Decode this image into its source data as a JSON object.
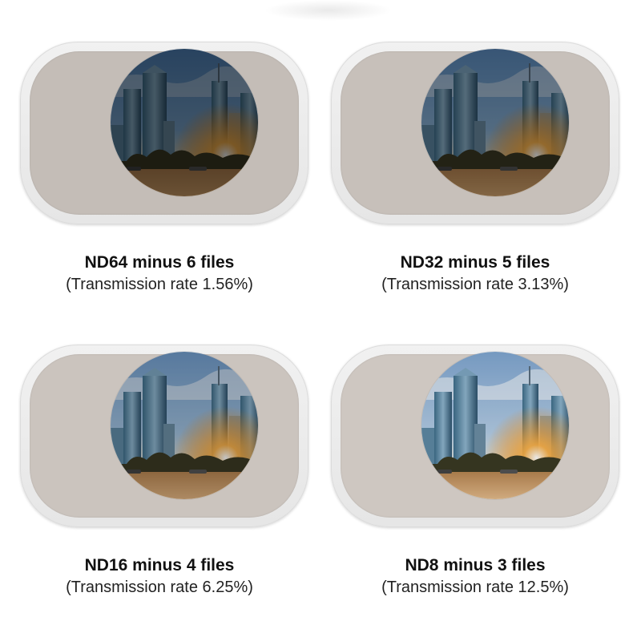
{
  "filters": [
    {
      "title": "ND64 minus 6 files",
      "subtitle": "(Transmission rate 1.56%)",
      "tint": "#c4bdb7",
      "brightness": 0.05
    },
    {
      "title": "ND32 minus 5 files",
      "subtitle": "(Transmission rate 3.13%)",
      "tint": "#c7c0ba",
      "brightness": 0.18
    },
    {
      "title": "ND16 minus 4 files",
      "subtitle": "(Transmission rate 6.25%)",
      "tint": "#cbc4be",
      "brightness": 0.4
    },
    {
      "title": "ND8 minus 3 files",
      "subtitle": "(Transmission rate 12.5%)",
      "tint": "#cec7c1",
      "brightness": 0.58
    }
  ],
  "colors": {
    "sky": "#7aa9d4",
    "sun": "#ffb347",
    "ground": "#d9a56a"
  }
}
